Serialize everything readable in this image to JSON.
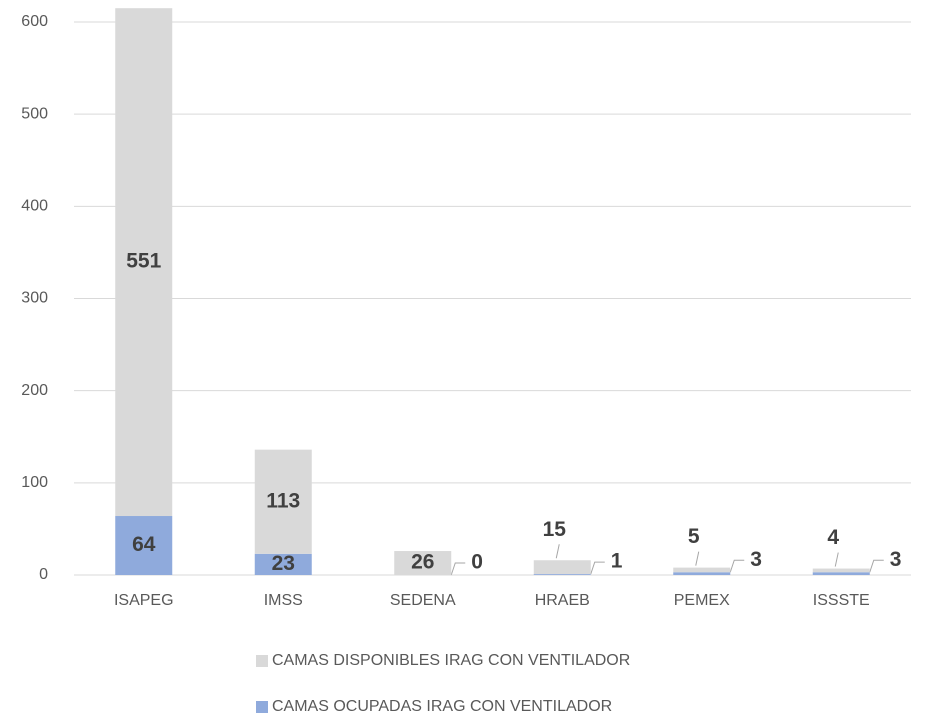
{
  "chart_data": {
    "type": "stacked_bar",
    "categories": [
      "ISAPEG",
      "IMSS",
      "SEDENA",
      "HRAEB",
      "PEMEX",
      "ISSSTE"
    ],
    "series": [
      {
        "name": "CAMAS OCUPADAS IRAG CON VENTILADOR",
        "color": "#8faadc",
        "values": [
          64,
          23,
          0,
          1,
          3,
          3
        ]
      },
      {
        "name": "CAMAS DISPONIBLES IRAG CON VENTILADOR",
        "color": "#d9d9d9",
        "values": [
          551,
          113,
          26,
          15,
          5,
          4
        ]
      }
    ],
    "ylim": [
      0,
      600
    ],
    "yticks": [
      0,
      100,
      200,
      300,
      400,
      500,
      600
    ],
    "grid": true,
    "legend": "bottom"
  }
}
